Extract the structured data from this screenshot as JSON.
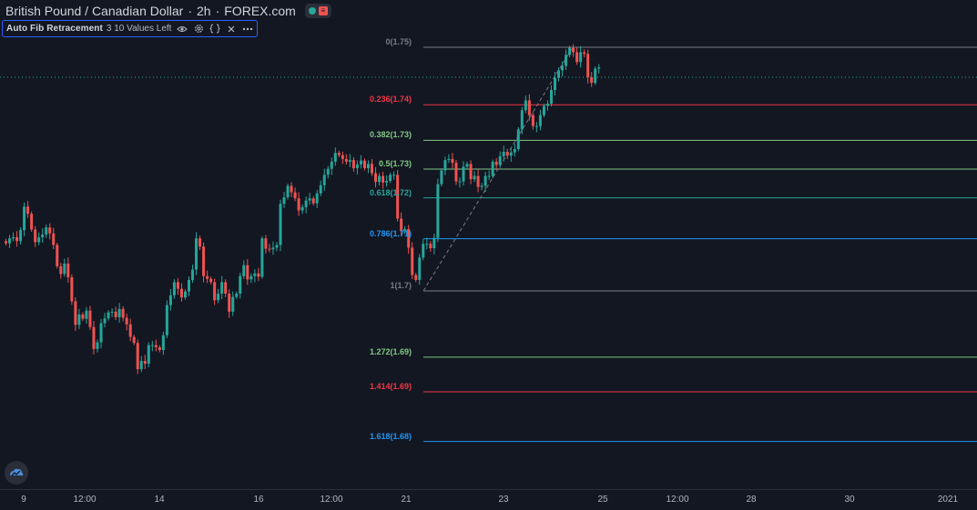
{
  "header": {
    "symbol_name": "British Pound / Canadian Dollar",
    "interval": "2h",
    "source": "FOREX.com",
    "status_icons": [
      "market-open-dot-icon",
      "data-status-icon"
    ]
  },
  "indicator": {
    "name": "Auto Fib Retracement",
    "params": "3 10 Values Left",
    "actions": [
      "eye-icon",
      "settings-icon",
      "source-code-icon",
      "close-icon",
      "more-icon"
    ]
  },
  "colors": {
    "background": "#131722",
    "up": "#26a69a",
    "down": "#ef5350",
    "fib_gray": "#787b86",
    "fib_red": "#f23645",
    "fib_green": "#81c784",
    "fib_teal": "#26a69a",
    "fib_blue": "#2196f3"
  },
  "chart_data": {
    "type": "candlestick",
    "symbol": "GBPCAD",
    "interval": "2h",
    "x_ticks": [
      "9",
      "12:00",
      "14",
      "16",
      "12:00",
      "21",
      "23",
      "25",
      "12:00",
      "28",
      "30",
      "2021"
    ],
    "fib_levels": [
      {
        "label": "0(1.75)",
        "level": 0,
        "price": 1.75,
        "color": "fib_gray"
      },
      {
        "label": "0.236(1.74)",
        "level": 0.236,
        "price": 1.74,
        "color": "fib_red"
      },
      {
        "label": "0.382(1.73)",
        "level": 0.382,
        "price": 1.73,
        "color": "fib_green"
      },
      {
        "label": "0.5(1.73)",
        "level": 0.5,
        "price": 1.73,
        "color": "fib_green"
      },
      {
        "label": "0.618(1.72)",
        "level": 0.618,
        "price": 1.72,
        "color": "fib_teal"
      },
      {
        "label": "0.786(1.71)",
        "level": 0.786,
        "price": 1.71,
        "color": "fib_blue"
      },
      {
        "label": "1(1.7)",
        "level": 1,
        "price": 1.7,
        "color": "fib_gray"
      },
      {
        "label": "1.272(1.69)",
        "level": 1.272,
        "price": 1.69,
        "color": "fib_green"
      },
      {
        "label": "1.414(1.69)",
        "level": 1.414,
        "price": 1.69,
        "color": "fib_red"
      },
      {
        "label": "1.618(1.68)",
        "level": 1.618,
        "price": 1.68,
        "color": "fib_blue"
      }
    ],
    "closes": [
      1.7117,
      1.7126,
      1.7128,
      1.7121,
      1.7141,
      1.7184,
      1.7171,
      1.7142,
      1.7119,
      1.7128,
      1.7133,
      1.7146,
      1.7135,
      1.7114,
      1.7075,
      1.7061,
      1.708,
      1.7055,
      1.7011,
      1.6968,
      1.6987,
      1.6979,
      1.6994,
      1.6964,
      1.6924,
      1.6936,
      1.6971,
      1.698,
      1.6991,
      1.6992,
      1.6982,
      1.6997,
      1.6981,
      1.6969,
      1.6946,
      1.6935,
      1.6887,
      1.6902,
      1.6897,
      1.6931,
      1.6931,
      1.6927,
      1.6922,
      1.6949,
      1.7004,
      1.7022,
      1.7046,
      1.7034,
      1.7018,
      1.7029,
      1.705,
      1.7069,
      1.7126,
      1.7111,
      1.7057,
      1.7052,
      1.7046,
      1.7013,
      1.7025,
      1.7046,
      1.7025,
      1.6992,
      1.7019,
      1.7025,
      1.7057,
      1.7077,
      1.7051,
      1.7057,
      1.7062,
      1.7056,
      1.7126,
      1.7107,
      1.7106,
      1.7109,
      1.7114,
      1.7189,
      1.7201,
      1.7222,
      1.721,
      1.7199,
      1.7177,
      1.7183,
      1.7195,
      1.7199,
      1.719,
      1.7208,
      1.7223,
      1.7242,
      1.7253,
      1.7266,
      1.7282,
      1.7278,
      1.7271,
      1.7266,
      1.7269,
      1.7254,
      1.7261,
      1.7268,
      1.7254,
      1.7262,
      1.7245,
      1.7229,
      1.724,
      1.7228,
      1.7231,
      1.7242,
      1.7242,
      1.7162,
      1.714,
      1.7143,
      1.7109,
      1.7059,
      1.705,
      1.7091,
      1.7116,
      1.7116,
      1.7108,
      1.7127,
      1.7225,
      1.725,
      1.7269,
      1.7271,
      1.7264,
      1.723,
      1.723,
      1.7257,
      1.7262,
      1.7234,
      1.724,
      1.722,
      1.7222,
      1.724,
      1.724,
      1.7266,
      1.726,
      1.7276,
      1.7284,
      1.7277,
      1.7283,
      1.7289,
      1.7325,
      1.736,
      1.7378,
      1.7351,
      1.7331,
      1.7331,
      1.7351,
      1.7368,
      1.7372,
      1.7397,
      1.7419,
      1.7433,
      1.7441,
      1.7461,
      1.7474,
      1.7466,
      1.7448,
      1.7466,
      1.7463,
      1.742,
      1.741,
      1.7436,
      1.7438
    ]
  }
}
